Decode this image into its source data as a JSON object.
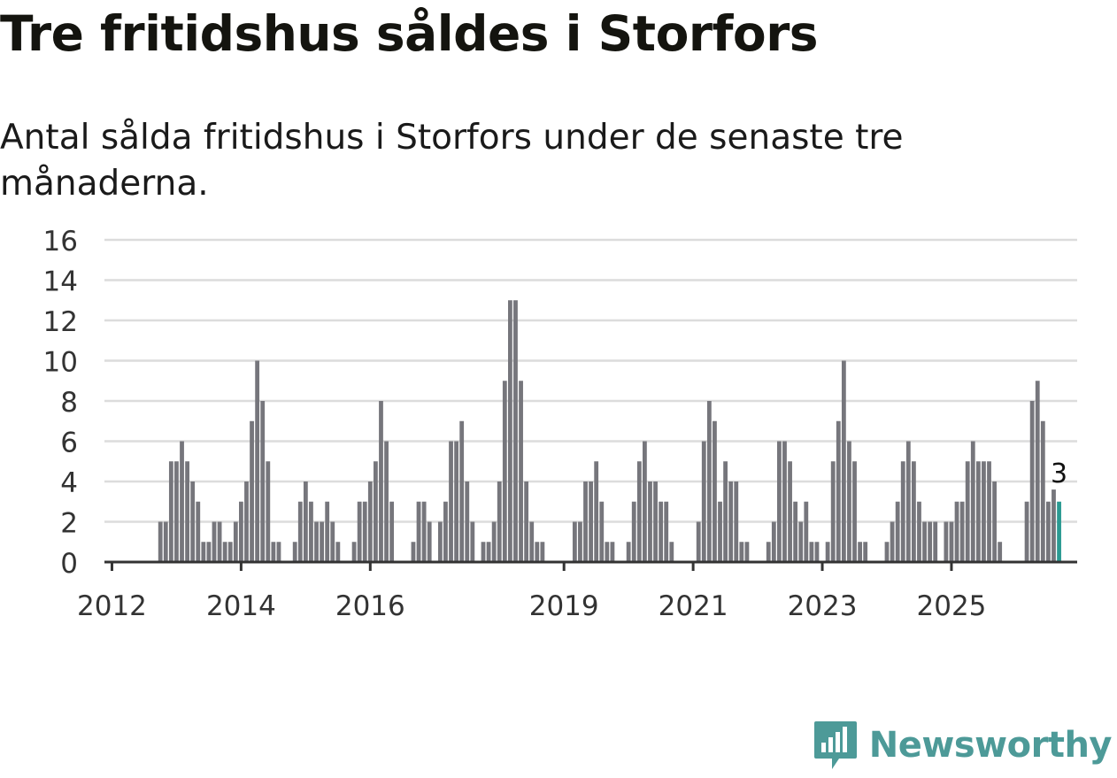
{
  "header": {
    "title": "Tre fritidshus såldes i Storfors",
    "subtitle": "Antal sålda fritidshus i Storfors under de senaste tre månaderna."
  },
  "brand": {
    "name": "Newsworthy",
    "icon": "newsworthy-logo-icon",
    "color": "#4d9a98"
  },
  "chart_data": {
    "type": "bar",
    "ylim": [
      0,
      16
    ],
    "yticks": [
      0,
      2,
      4,
      6,
      8,
      10,
      12,
      14,
      16
    ],
    "xtick_labels": [
      "2012",
      "2014",
      "2016",
      "2019",
      "2021",
      "2023",
      "2025"
    ],
    "grid": true,
    "bar_color": "#76767c",
    "highlight_color": "#2a9a92",
    "highlight_label": "3",
    "start_month": "2011-12",
    "values": [
      0,
      0,
      0,
      0,
      0,
      0,
      0,
      0,
      0,
      0,
      2,
      2,
      5,
      5,
      6,
      5,
      4,
      3,
      1,
      1,
      2,
      2,
      1,
      1,
      2,
      3,
      4,
      7,
      10,
      8,
      5,
      1,
      1,
      0,
      0,
      1,
      3,
      4,
      3,
      2,
      2,
      3,
      2,
      1,
      0,
      0,
      1,
      3,
      3,
      4,
      5,
      8,
      6,
      3,
      0,
      0,
      0,
      1,
      3,
      3,
      2,
      0,
      2,
      3,
      6,
      6,
      7,
      4,
      2,
      0,
      1,
      1,
      2,
      4,
      9,
      13,
      13,
      9,
      4,
      2,
      1,
      1,
      0,
      0,
      0,
      0,
      0,
      2,
      2,
      4,
      4,
      5,
      3,
      1,
      1,
      0,
      0,
      1,
      3,
      5,
      6,
      4,
      4,
      3,
      3,
      1,
      0,
      0,
      0,
      0,
      2,
      6,
      8,
      7,
      3,
      5,
      4,
      4,
      1,
      1,
      0,
      0,
      0,
      1,
      2,
      6,
      6,
      5,
      3,
      2,
      3,
      1,
      1,
      0,
      1,
      5,
      7,
      10,
      6,
      5,
      1,
      1,
      0,
      0,
      0,
      1,
      2,
      3,
      5,
      6,
      5,
      3,
      2,
      2,
      2,
      0,
      2,
      2,
      3,
      3,
      5,
      6,
      5,
      5,
      5,
      4,
      1,
      0,
      0,
      0,
      0,
      3,
      8,
      9,
      7,
      3,
      3.6,
      3
    ]
  }
}
